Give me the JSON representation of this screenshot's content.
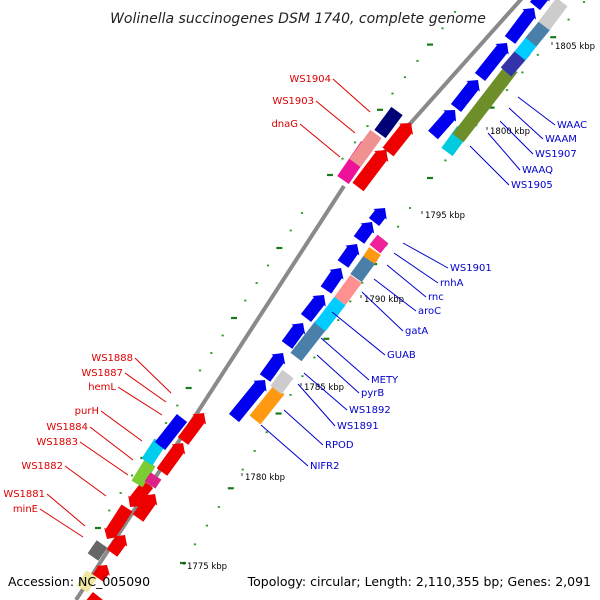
{
  "title": "Wolinella succinogenes DSM 1740, complete genome",
  "footer": {
    "accession": "Accession: NC_005090",
    "summary": "Topology: circular; Length: 2,110,355 bp; Genes: 2,091"
  },
  "colors": {
    "backbone": "#8a8a8a",
    "left_labels": "#dd0000",
    "right_labels": "#0000cc",
    "tick_major": "#1a7a1a",
    "tick_minor": "#2a9a2a"
  },
  "ticks": [
    {
      "label": "1775 kbp"
    },
    {
      "label": "1780 kbp"
    },
    {
      "label": "1785 kbp"
    },
    {
      "label": "1790 kbp"
    },
    {
      "label": "1795 kbp"
    },
    {
      "label": "1800 kbp"
    },
    {
      "label": "1805 kbp"
    }
  ],
  "left_labels": [
    "WS1904",
    "WS1903",
    "dnaG",
    "WS1888",
    "WS1887",
    "hemL",
    "purH",
    "WS1884",
    "WS1883",
    "WS1882",
    "WS1881",
    "minE"
  ],
  "right_labels": [
    "WAAC",
    "WAAM",
    "WS1907",
    "WAAQ",
    "WS1905",
    "WS1901",
    "rnhA",
    "rnc",
    "aroC",
    "gatA",
    "GUAB",
    "METY",
    "pyrB",
    "WS1892",
    "WS1891",
    "RPOD",
    "NIFR2"
  ]
}
